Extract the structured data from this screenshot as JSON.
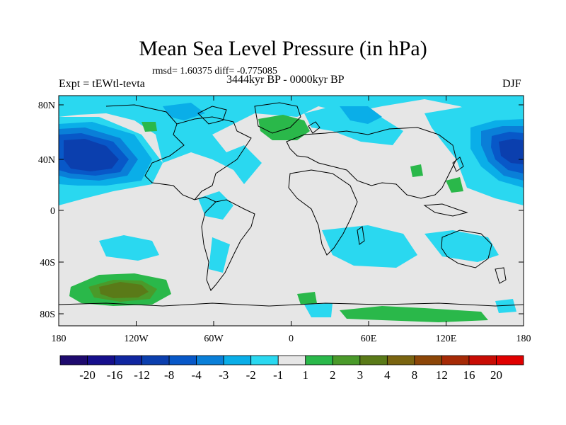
{
  "title": "Mean Sea Level Pressure (in hPa)",
  "stats": "rmsd= 1.60375 diff= -0.775085",
  "left_label": "Expt = tEWtl-tevta",
  "center_label": "3444kyr BP - 0000kyr BP",
  "right_label": "DJF",
  "axes": {
    "x_ticks": [
      "180",
      "120W",
      "60W",
      "0",
      "60E",
      "120E",
      "180"
    ],
    "y_ticks": [
      "80N",
      "40N",
      "0",
      "40S",
      "80S"
    ]
  },
  "colorbar": {
    "labels": [
      "-20",
      "-16",
      "-12",
      "-8",
      "-4",
      "-3",
      "-2",
      "-1",
      "1",
      "2",
      "3",
      "4",
      "8",
      "12",
      "16",
      "20"
    ],
    "colors": [
      "#1e0a6e",
      "#160f8c",
      "#1026a0",
      "#0b3fae",
      "#0858c8",
      "#0a7fd8",
      "#0aaee8",
      "#2ad8f0",
      "#e6e6e6",
      "#2ab84a",
      "#4a9a2a",
      "#5a7a18",
      "#7a6410",
      "#8c4608",
      "#a62a06",
      "#c80c04",
      "#e00000"
    ]
  }
}
